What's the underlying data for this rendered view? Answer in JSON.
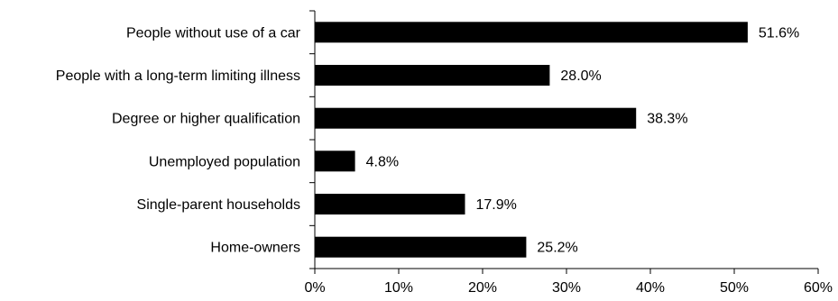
{
  "chart_data": {
    "type": "bar",
    "orientation": "horizontal",
    "categories": [
      "People without use of a car",
      "People with a long-term limiting illness",
      "Degree or higher qualification",
      "Unemployed population",
      "Single-parent households",
      "Home-owners"
    ],
    "values": [
      51.6,
      28.0,
      38.3,
      4.8,
      17.9,
      25.2
    ],
    "value_labels": [
      "51.6%",
      "28.0%",
      "38.3%",
      "4.8%",
      "17.9%",
      "25.2%"
    ],
    "xlim": [
      0,
      60
    ],
    "xticks": [
      0,
      10,
      20,
      30,
      40,
      50,
      60
    ],
    "xtick_labels": [
      "0%",
      "10%",
      "20%",
      "30%",
      "40%",
      "50%",
      "60%"
    ],
    "bar_color": "#000000",
    "grid": false,
    "legend": "none",
    "title": "",
    "xlabel": "",
    "ylabel": ""
  }
}
